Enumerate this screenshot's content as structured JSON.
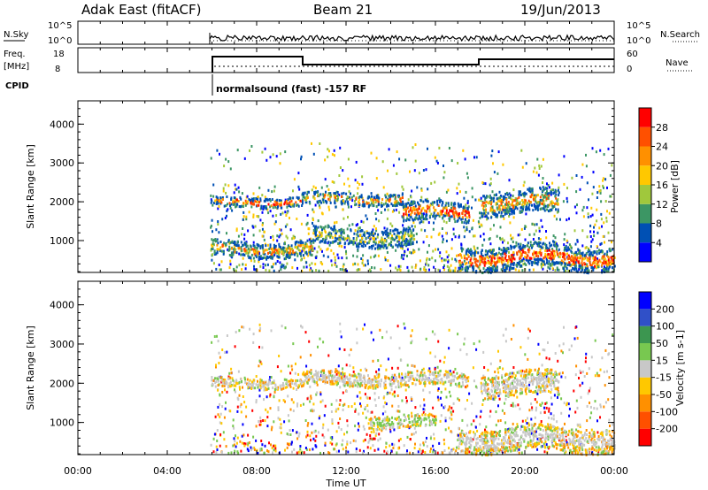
{
  "header": {
    "title_left": "Adak East (fitACF)",
    "title_center": "Beam 21",
    "title_right": "19/Jun/2013"
  },
  "panels": {
    "nsky_label": "N.Sky",
    "nsearch_label": "N.Search",
    "freq_label_top": "Freq.",
    "freq_label_unit": "[MHz]",
    "nave_label": "Nave",
    "cpid_label": "CPID",
    "cpid_text": "normalsound (fast) -157 RF",
    "noise_ticks_left": [
      "10^5",
      "10^0"
    ],
    "noise_ticks_right": [
      "10^5",
      "10^0"
    ],
    "freq_ticks": [
      "18",
      "8"
    ],
    "nave_ticks": [
      "60",
      "0"
    ]
  },
  "chart_data": [
    {
      "type": "heatmap",
      "name": "power",
      "ylabel": "Slant Range [km]",
      "xlabel": "Time UT",
      "xlim_hours": [
        0,
        24
      ],
      "ylim": [
        180,
        4600
      ],
      "colorbar": {
        "label": "Power [dB]",
        "ticks": [
          "28",
          "24",
          "20",
          "16",
          "12",
          "8",
          "4"
        ],
        "colors": [
          "#ff0000",
          "#ff5000",
          "#ff9000",
          "#ffc800",
          "#a0c83c",
          "#3c9664",
          "#0050b4",
          "#0000ff"
        ]
      },
      "bands": [
        {
          "t": [
            5.9,
            10.0
          ],
          "r": [
            1900,
            2150
          ],
          "level": "high"
        },
        {
          "t": [
            10.0,
            14.5
          ],
          "r": [
            1950,
            2250
          ],
          "level": "mid"
        },
        {
          "t": [
            14.5,
            17.5
          ],
          "r": [
            1500,
            2000
          ],
          "level": "high"
        },
        {
          "t": [
            18.0,
            21.5
          ],
          "r": [
            1700,
            2300
          ],
          "level": "mid"
        },
        {
          "t": [
            5.9,
            10.5
          ],
          "r": [
            600,
            1000
          ],
          "level": "mid"
        },
        {
          "t": [
            10.5,
            15.0
          ],
          "r": [
            900,
            1350
          ],
          "level": "low"
        },
        {
          "t": [
            17.0,
            24.0
          ],
          "r": [
            300,
            900
          ],
          "level": "high"
        }
      ]
    },
    {
      "type": "heatmap",
      "name": "velocity",
      "ylabel": "Slant Range [km]",
      "xlabel": "Time UT",
      "xlim_hours": [
        0,
        24
      ],
      "ylim": [
        180,
        4600
      ],
      "colorbar": {
        "label": "Velocity [m s-1]",
        "ticks": [
          "200",
          "100",
          "50",
          "15",
          "-15",
          "-50",
          "-100",
          "-200"
        ],
        "colors": [
          "#0000ff",
          "#3050c8",
          "#3c9650",
          "#78c850",
          "#c8c8c8",
          "#ffc800",
          "#ff9000",
          "#ff5000",
          "#ff0000"
        ]
      },
      "bands": [
        {
          "t": [
            5.9,
            10.0
          ],
          "r": [
            1900,
            2150
          ],
          "level": "gray"
        },
        {
          "t": [
            10.0,
            17.5
          ],
          "r": [
            1950,
            2300
          ],
          "level": "gray"
        },
        {
          "t": [
            18.0,
            21.5
          ],
          "r": [
            1700,
            2300
          ],
          "level": "gray"
        },
        {
          "t": [
            13.0,
            16.0
          ],
          "r": [
            900,
            1200
          ],
          "level": "green"
        },
        {
          "t": [
            17.0,
            24.0
          ],
          "r": [
            300,
            900
          ],
          "level": "gray"
        }
      ]
    }
  ],
  "time_axis": {
    "ticks": [
      "00:00",
      "04:00",
      "08:00",
      "12:00",
      "16:00",
      "20:00",
      "00:00"
    ],
    "label": "Time UT"
  },
  "range_axis": {
    "ticks": [
      "1000",
      "2000",
      "3000",
      "4000"
    ]
  }
}
